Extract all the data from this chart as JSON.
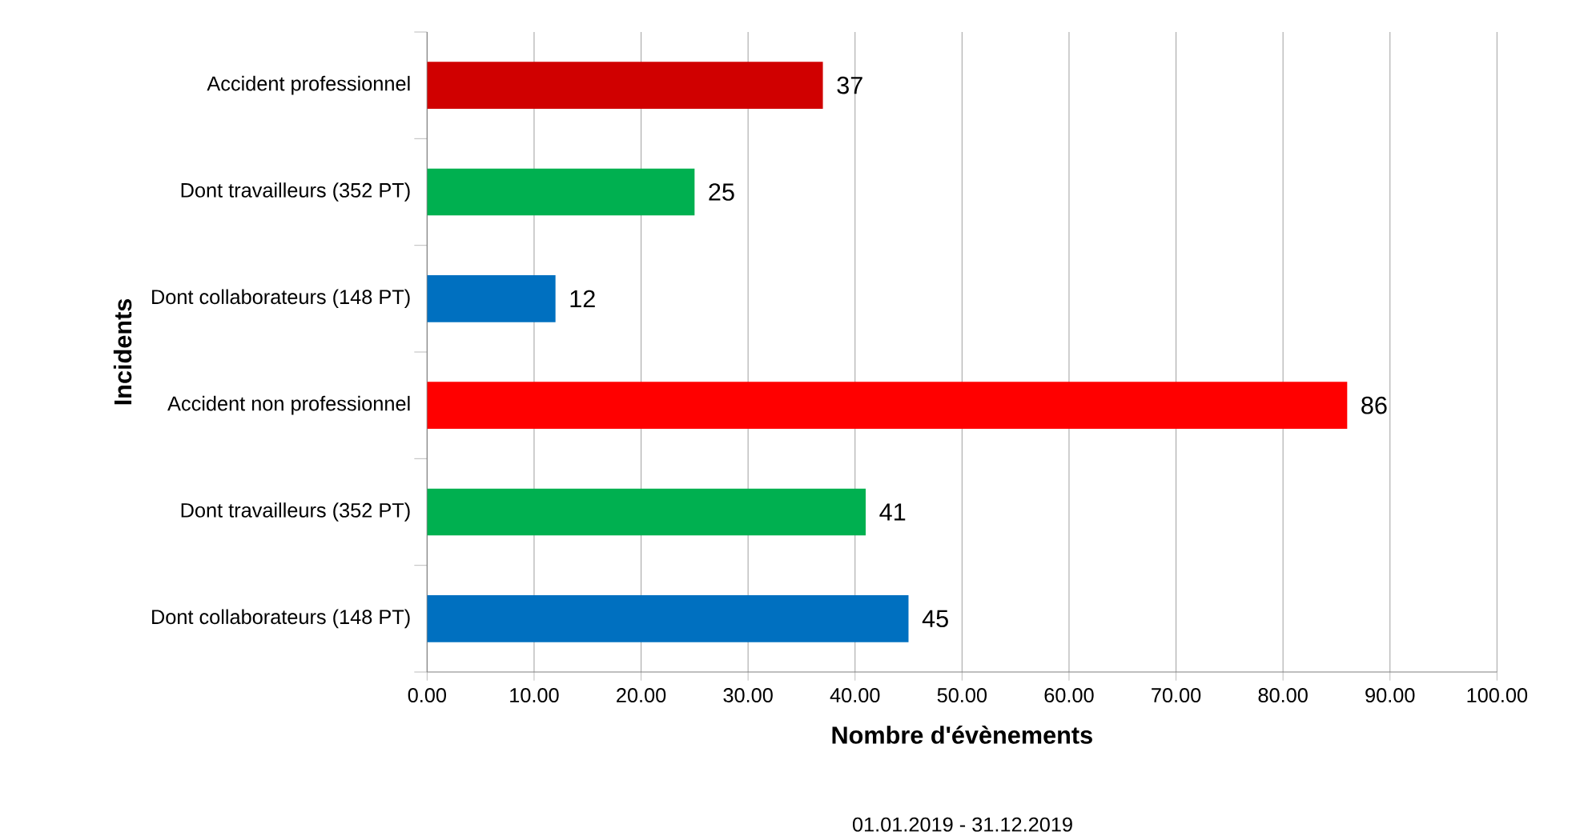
{
  "chart_data": {
    "type": "bar",
    "orientation": "horizontal",
    "xlabel": "Nombre d'évènements",
    "ylabel": "Incidents",
    "categories": [
      "Accident professionnel",
      "Dont travailleurs (352 PT)",
      "Dont collaborateurs (148 PT)",
      "Accident non professionnel",
      "Dont travailleurs (352 PT)",
      "Dont collaborateurs (148 PT)"
    ],
    "values": [
      37,
      25,
      12,
      86,
      41,
      45
    ],
    "colors": [
      "#d00000",
      "#00b050",
      "#0070c0",
      "#ff0000",
      "#00b050",
      "#0070c0"
    ],
    "data_labels": true,
    "xlim": [
      0,
      100
    ],
    "xticks": [
      {
        "value": 0,
        "label": "0.00"
      },
      {
        "value": 10,
        "label": "10.00"
      },
      {
        "value": 20,
        "label": "20.00"
      },
      {
        "value": 30,
        "label": "30.00"
      },
      {
        "value": 40,
        "label": "40.00"
      },
      {
        "value": 50,
        "label": "50.00"
      },
      {
        "value": 60,
        "label": "60.00"
      },
      {
        "value": 70,
        "label": "70.00"
      },
      {
        "value": 80,
        "label": "80.00"
      },
      {
        "value": 90,
        "label": "90.00"
      },
      {
        "value": 100,
        "label": "100.00"
      }
    ],
    "grid": "x",
    "annotations": [
      "01.01.2019 - 31.12.2019"
    ]
  }
}
